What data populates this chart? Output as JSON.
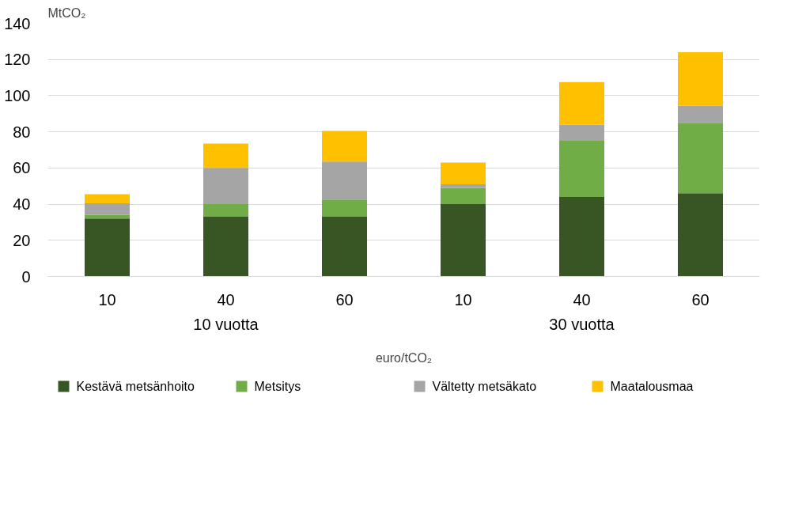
{
  "chart_data": {
    "type": "bar",
    "stacked": true,
    "ylabel": "MtCO₂",
    "xlabel": "euro/tCO₂",
    "categories": [
      "10",
      "40",
      "60",
      "10",
      "40",
      "60"
    ],
    "annotations": [
      "10 vuotta",
      "30 vuotta"
    ],
    "series": [
      {
        "name": "Kestävä metsänhoito",
        "color": "#375623",
        "values": [
          32,
          33,
          33,
          40,
          44,
          46
        ]
      },
      {
        "name": "Metsitys",
        "color": "#70ad47",
        "values": [
          2,
          7,
          9.5,
          9,
          31,
          39
        ]
      },
      {
        "name": "Vältetty metsäkato",
        "color": "#a5a5a5",
        "values": [
          6.5,
          20,
          21,
          2,
          9,
          9.5
        ]
      },
      {
        "name": "Maatalousmaa",
        "color": "#ffc000",
        "values": [
          5,
          13.5,
          17,
          12,
          23.5,
          29.5
        ]
      }
    ],
    "ylim": [
      0,
      140
    ],
    "yticks": [
      0,
      20,
      40,
      60,
      80,
      100,
      120,
      140
    ],
    "grid": "y",
    "legend": "bottom"
  }
}
